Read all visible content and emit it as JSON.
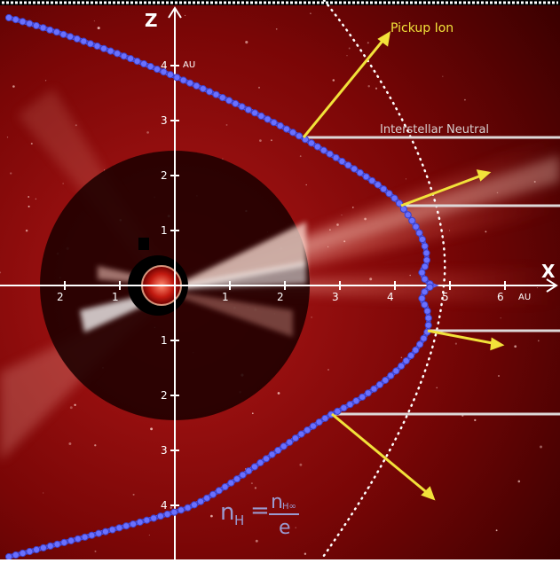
{
  "axes": {
    "x_label": "X",
    "z_label": "Z",
    "x_unit": "AU",
    "z_unit": "AU",
    "x_ticks": [
      "2",
      "1",
      "1",
      "2",
      "3",
      "4",
      "5",
      "6"
    ],
    "z_ticks": [
      "4",
      "3",
      "2",
      "1",
      "1",
      "2",
      "3",
      "4"
    ]
  },
  "labels": {
    "pickup_ion": "Pickup Ion",
    "interstellar_neutral": "Interstellar Neutral"
  },
  "formula": {
    "lhs": "n",
    "lhs_sub": "H",
    "equals": "=",
    "numerator": "n",
    "numerator_sub": "H∞",
    "denominator": "e"
  },
  "colors": {
    "background_dark": "#3a0000",
    "background_mid": "#8a0a0a",
    "corona": "#ffe0d0",
    "boundary": "#5a5ff0",
    "arrow": "#f2e23a",
    "neutral_line": "#ddd8d8",
    "axis": "#ffffff",
    "formula": "#9a9ad0"
  }
}
